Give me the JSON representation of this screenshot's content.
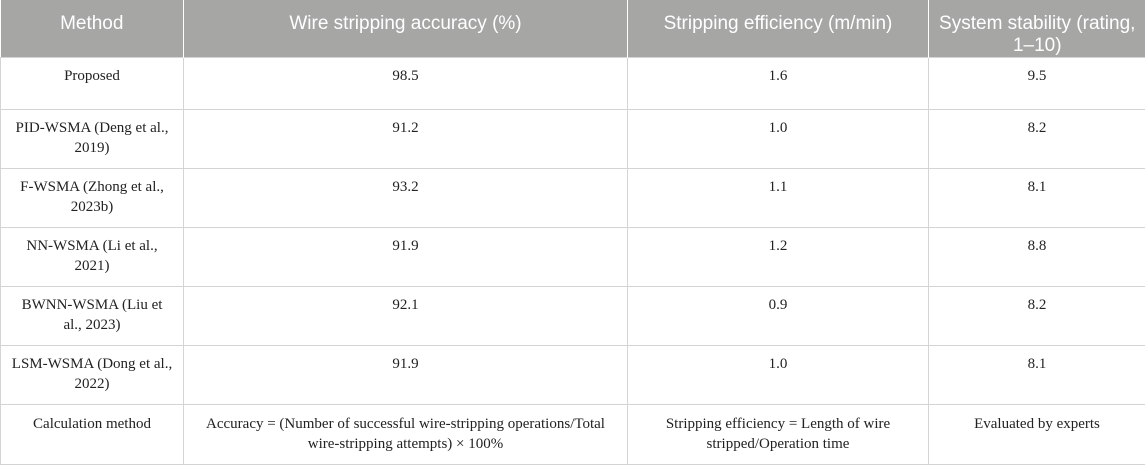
{
  "table": {
    "headers": [
      "Method",
      "Wire stripping accuracy (%)",
      "Stripping efficiency (m/min)",
      "System stability (rating, 1–10)"
    ],
    "rows": [
      [
        "Proposed",
        "98.5",
        "1.6",
        "9.5"
      ],
      [
        "PID-WSMA (Deng et al., 2019)",
        "91.2",
        "1.0",
        "8.2"
      ],
      [
        "F-WSMA (Zhong et al., 2023b)",
        "93.2",
        "1.1",
        "8.1"
      ],
      [
        "NN-WSMA (Li et al., 2021)",
        "91.9",
        "1.2",
        "8.8"
      ],
      [
        "BWNN-WSMA (Liu et al., 2023)",
        "92.1",
        "0.9",
        "8.2"
      ],
      [
        "LSM-WSMA (Dong et al., 2022)",
        "91.9",
        "1.0",
        "8.1"
      ],
      [
        "Calculation method",
        "Accuracy = (Number of successful wire-stripping operations/Total wire-stripping attempts) × 100%",
        "Stripping efficiency = Length of wire stripped/Operation time",
        "Evaluated by experts"
      ]
    ]
  }
}
